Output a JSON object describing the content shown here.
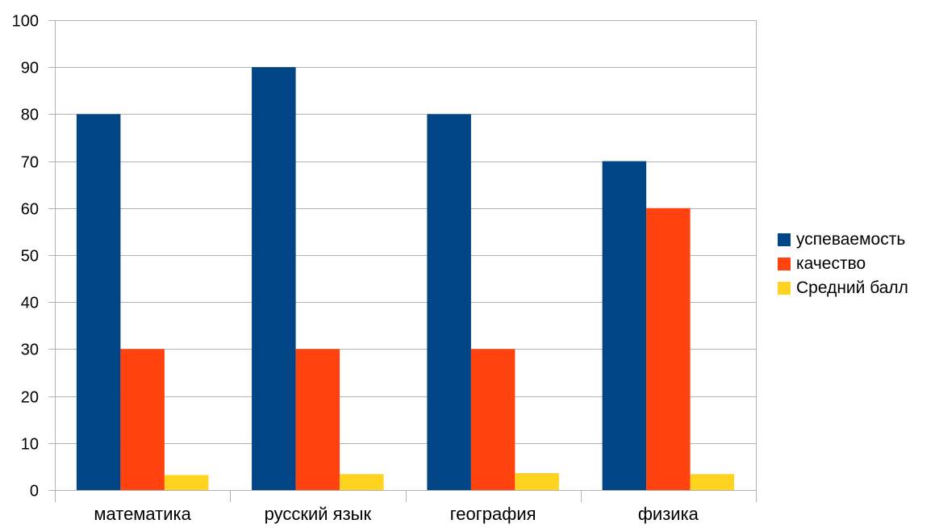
{
  "chart_data": {
    "type": "bar",
    "categories": [
      "математика",
      "русский язык",
      "география",
      "физика"
    ],
    "series": [
      {
        "name": "успеваемость",
        "color": "#004586",
        "values": [
          80,
          90,
          80,
          70
        ]
      },
      {
        "name": "качество",
        "color": "#ff420e",
        "values": [
          30,
          30,
          30,
          60
        ]
      },
      {
        "name": "Средний балл",
        "color": "#ffd320",
        "values": [
          3.2,
          3.4,
          3.6,
          3.4
        ]
      }
    ],
    "ylim": [
      0,
      100
    ],
    "yticks": [
      "0",
      "10",
      "20",
      "30",
      "40",
      "50",
      "60",
      "70",
      "80",
      "90",
      "100"
    ],
    "grid": true,
    "legend_position": "right"
  }
}
